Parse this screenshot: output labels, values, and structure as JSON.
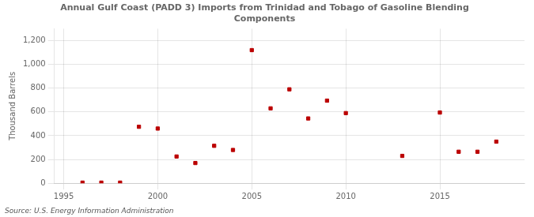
{
  "chart_data": {
    "type": "scatter",
    "title": "Annual Gulf Coast (PADD 3) Imports from Trinidad and Tobago of Gasoline Blending\nComponents",
    "ylabel": "Thousand Barrels",
    "annotations": [
      "Source: U.S. Energy Information Administration"
    ],
    "x": [
      1996,
      1997,
      1998,
      1999,
      2000,
      2001,
      2002,
      2003,
      2004,
      2005,
      2006,
      2007,
      2008,
      2009,
      2010,
      2013,
      2015,
      2016,
      2017,
      2018
    ],
    "values": [
      5,
      5,
      5,
      475,
      460,
      225,
      170,
      315,
      280,
      1120,
      630,
      790,
      545,
      695,
      590,
      230,
      595,
      265,
      265,
      350
    ],
    "color": "#bb0000",
    "marker": "square",
    "xlim": [
      1994.5,
      2019.5
    ],
    "xticks": [
      1995,
      2000,
      2005,
      2010,
      2015
    ],
    "ylim": [
      0,
      1300
    ],
    "yticks": [
      0,
      200,
      400,
      600,
      800,
      {
        "value": 1000,
        "label": "1,000"
      },
      {
        "value": 1200,
        "label": "1,200"
      }
    ],
    "grid": true
  }
}
